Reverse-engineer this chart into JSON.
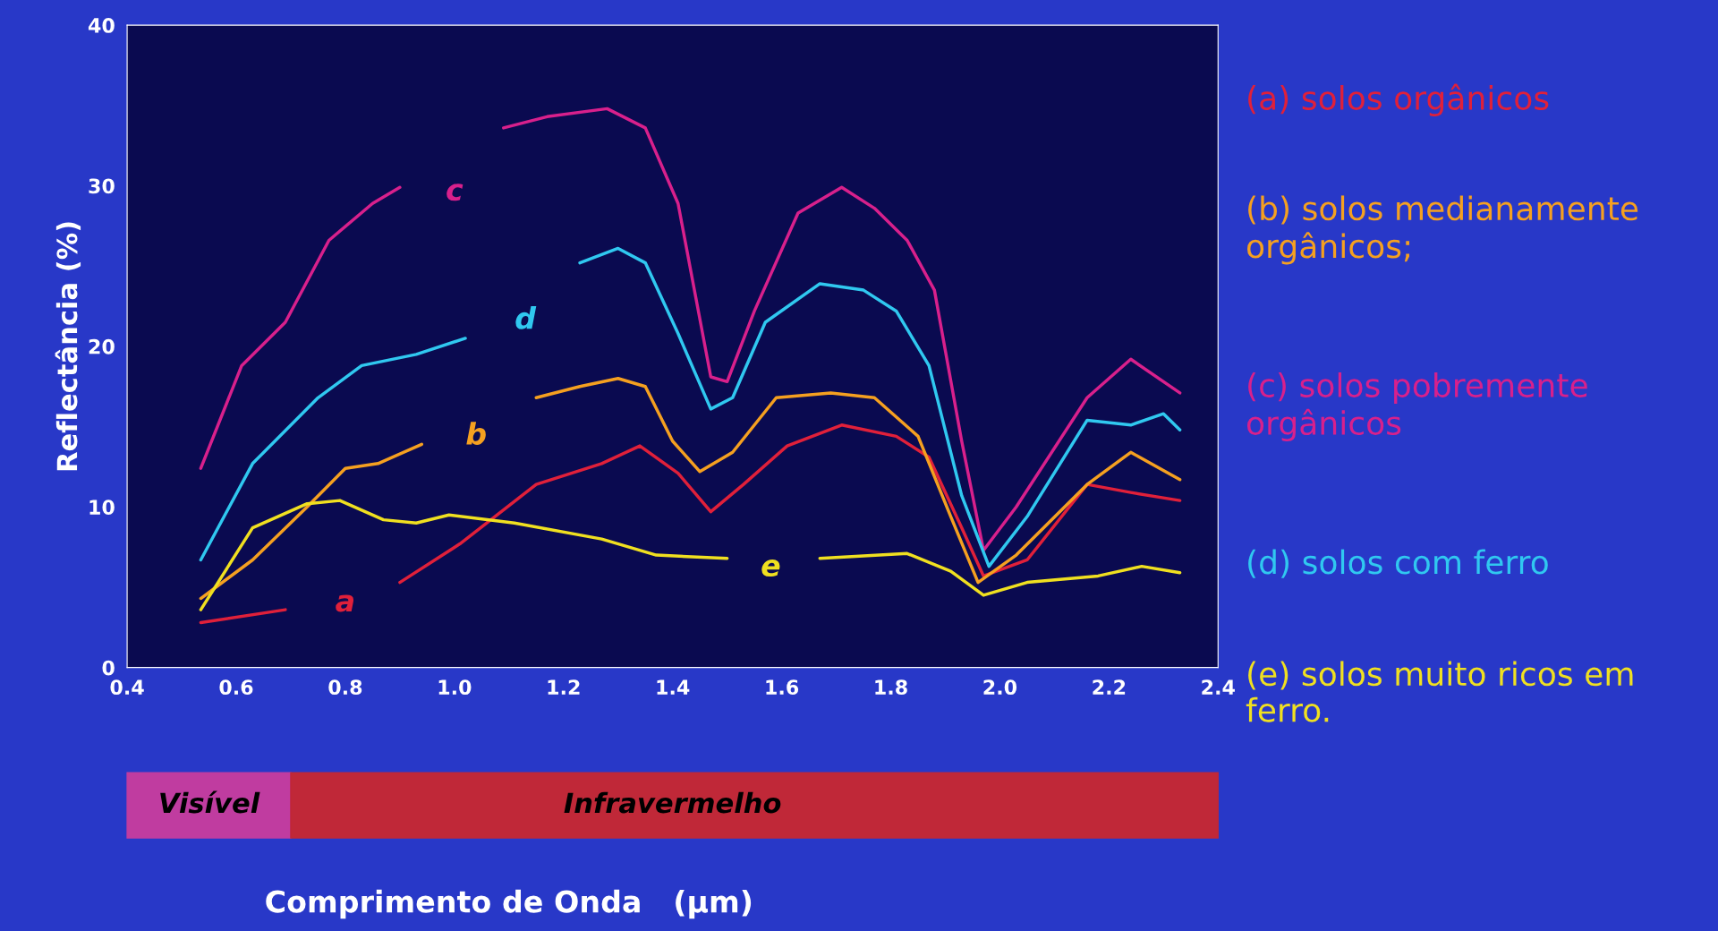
{
  "chart_data": {
    "type": "line",
    "ylabel": "Reflectância (%)",
    "xlim": [
      0.4,
      2.4
    ],
    "xticks": [
      0.4,
      0.6,
      0.8,
      {
        "value": 1,
        "label": "1.0"
      },
      1.2,
      1.4,
      1.6,
      1.8,
      {
        "value": 2,
        "label": "2.0"
      },
      2.2,
      2.4
    ],
    "ylim": [
      0,
      40
    ],
    "yticks": [
      0,
      10,
      20,
      30,
      40
    ],
    "grid": false,
    "legend": "right",
    "marker": "none",
    "line_style": "solid",
    "series": [
      {
        "name": "(a) solos orgânicos",
        "color": "#e0203a",
        "x": [
          0.535,
          0.69,
          0.79,
          0.9,
          1.01,
          1.15,
          1.27,
          1.34,
          1.41,
          1.47,
          1.53,
          1.61,
          1.71,
          1.81,
          1.87,
          1.93,
          1.97,
          2.05,
          2.16,
          2.24,
          2.33
        ],
        "values": [
          2.8,
          3.6,
          null,
          5.3,
          7.7,
          11.4,
          12.7,
          13.8,
          12.1,
          9.7,
          11.4,
          13.8,
          15.1,
          14.4,
          13.1,
          8.7,
          5.7,
          6.7,
          11.4,
          10.9,
          10.4
        ]
      },
      {
        "name": "(b) solos medianamente orgânicos;",
        "color": "#f5a020",
        "x": [
          0.535,
          0.63,
          0.73,
          0.8,
          0.86,
          0.94,
          1.05,
          1.15,
          1.23,
          1.3,
          1.35,
          1.4,
          1.45,
          1.51,
          1.59,
          1.69,
          1.77,
          1.85,
          1.91,
          1.96,
          2.03,
          2.16,
          2.24,
          2.33
        ],
        "values": [
          4.3,
          6.7,
          10.0,
          12.4,
          12.7,
          13.9,
          null,
          16.8,
          17.5,
          18.0,
          17.5,
          14.1,
          12.2,
          13.4,
          16.8,
          17.1,
          16.8,
          14.4,
          9.4,
          5.3,
          7.0,
          11.4,
          13.4,
          11.7
        ]
      },
      {
        "name": "(c) solos pobremente orgânicos",
        "color": "#d8208c",
        "x": [
          0.535,
          0.61,
          0.69,
          0.77,
          0.85,
          0.9,
          1.0,
          1.09,
          1.17,
          1.28,
          1.35,
          1.41,
          1.47,
          1.5,
          1.55,
          1.63,
          1.71,
          1.77,
          1.83,
          1.88,
          1.93,
          1.97,
          2.03,
          2.16,
          2.24,
          2.33
        ],
        "values": [
          12.4,
          18.8,
          21.5,
          26.6,
          28.9,
          29.9,
          null,
          33.6,
          34.3,
          34.8,
          33.6,
          28.9,
          18.1,
          17.8,
          22.2,
          28.3,
          29.9,
          28.6,
          26.6,
          23.5,
          14.1,
          7.3,
          10.0,
          16.8,
          19.2,
          17.1
        ]
      },
      {
        "name": "(d) solos com ferro",
        "color": "#30c8f0",
        "x": [
          0.535,
          0.63,
          0.75,
          0.83,
          0.93,
          1.02,
          1.12,
          1.23,
          1.3,
          1.35,
          1.41,
          1.47,
          1.51,
          1.57,
          1.67,
          1.75,
          1.81,
          1.87,
          1.93,
          1.98,
          2.05,
          2.16,
          2.24,
          2.3,
          2.33
        ],
        "values": [
          6.7,
          12.7,
          16.8,
          18.8,
          19.5,
          20.5,
          null,
          25.2,
          26.1,
          25.2,
          20.8,
          16.1,
          16.8,
          21.5,
          23.9,
          23.5,
          22.2,
          18.8,
          10.7,
          6.3,
          9.4,
          15.4,
          15.1,
          15.8,
          14.8
        ]
      },
      {
        "name": "(e) solos muito ricos em ferro.",
        "color": "#f0e020",
        "x": [
          0.535,
          0.63,
          0.73,
          0.79,
          0.87,
          0.93,
          0.99,
          1.11,
          1.27,
          1.37,
          1.5,
          1.58,
          1.67,
          1.83,
          1.91,
          1.97,
          2.05,
          2.18,
          2.26,
          2.33
        ],
        "values": [
          3.6,
          8.7,
          10.2,
          10.4,
          9.2,
          9.0,
          9.5,
          9.0,
          8.0,
          7.0,
          6.8,
          null,
          6.8,
          7.1,
          6.0,
          4.5,
          5.3,
          5.7,
          6.3,
          5.9
        ]
      }
    ],
    "annotations": [
      "a",
      "b",
      "c",
      "d",
      "e",
      "Visível",
      "Infravermelho",
      "Comprimento de Onda   (µm)"
    ]
  }
}
